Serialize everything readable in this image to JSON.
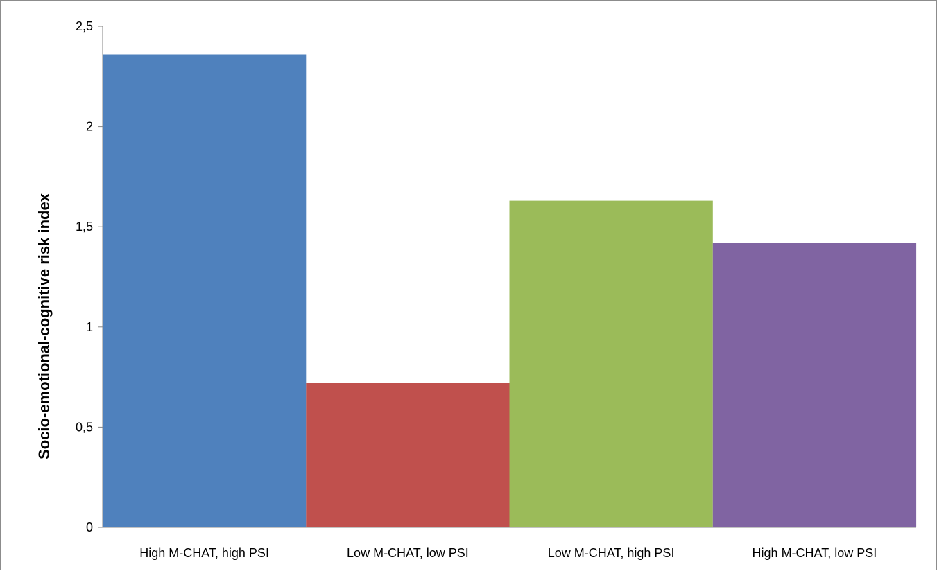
{
  "chart_data": {
    "type": "bar",
    "title": "",
    "xlabel": "",
    "ylabel": "Socio-emotional-cognitive risk index",
    "ylim": [
      0,
      2.5
    ],
    "yticks": [
      {
        "value": 0,
        "label": "0"
      },
      {
        "value": 0.5,
        "label": "0,5"
      },
      {
        "value": 1,
        "label": "1"
      },
      {
        "value": 1.5,
        "label": "1,5"
      },
      {
        "value": 2,
        "label": "2"
      },
      {
        "value": 2.5,
        "label": "2,5"
      }
    ],
    "grid": false,
    "legend": "none",
    "categories": [
      "High M-CHAT, high PSI",
      "Low M-CHAT, low PSI",
      "Low M-CHAT, high PSI",
      "High M-CHAT, low PSI"
    ],
    "values": [
      2.36,
      0.72,
      1.63,
      1.42
    ],
    "colors": [
      "#4f81bd",
      "#c0504d",
      "#9bbb59",
      "#8064a2"
    ]
  }
}
